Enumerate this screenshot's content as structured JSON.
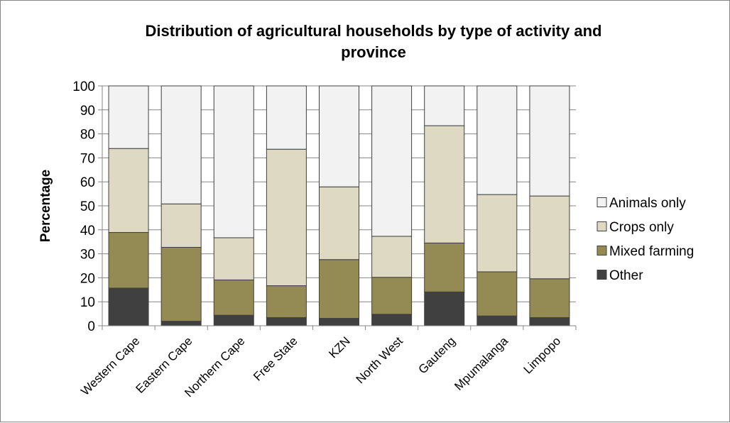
{
  "chart_data": {
    "type": "bar",
    "stacked": true,
    "title_lines": [
      "Distribution of agricultural households by type of activity and",
      "province"
    ],
    "ylabel": "Percentage",
    "xlabel": "",
    "ylim": [
      0,
      100
    ],
    "yticks": [
      "0",
      "10",
      "20",
      "30",
      "40",
      "50",
      "60",
      "70",
      "80",
      "90",
      "100"
    ],
    "categories": [
      "Western Cape",
      "Eastern Cape",
      "Northern Cape",
      "Free State",
      "KZN",
      "North West",
      "Gauteng",
      "Mpumalanga",
      "Limpopo"
    ],
    "series": [
      {
        "name": "Other",
        "color": "#404040",
        "values": [
          15.7,
          1.9,
          4.4,
          3.4,
          3.1,
          4.8,
          14.1,
          4.1,
          3.4
        ]
      },
      {
        "name": "Mixed farming",
        "color": "#948a54",
        "values": [
          23.2,
          30.8,
          14.7,
          13.3,
          24.5,
          15.4,
          20.4,
          18.4,
          16.2
        ]
      },
      {
        "name": "Crops only",
        "color": "#ddd9c3",
        "values": [
          35.0,
          18.1,
          17.6,
          56.9,
          30.3,
          17.1,
          48.9,
          32.2,
          34.5
        ]
      },
      {
        "name": "Animals only",
        "color": "#f2f2f2",
        "values": [
          26.1,
          49.2,
          63.3,
          26.4,
          42.1,
          62.7,
          16.6,
          45.3,
          45.9
        ]
      }
    ],
    "legend_order": [
      "Animals only",
      "Crops only",
      "Mixed farming",
      "Other"
    ],
    "grid": true,
    "legend_position": "right"
  }
}
